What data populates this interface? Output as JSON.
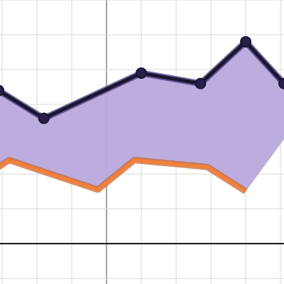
{
  "chart_data": {
    "type": "line",
    "xlim": [
      -3.06,
      5.1
    ],
    "ylim": [
      -1.16,
      7.0
    ],
    "xticks": [
      -3,
      -2,
      -1,
      0,
      1,
      2,
      3,
      4,
      5
    ],
    "yticks": [
      -1,
      0,
      1,
      2,
      3,
      4,
      5,
      6,
      7
    ],
    "grid": true,
    "fill": {
      "color": "#b8a9dc",
      "x": [
        -3.1,
        -1.8,
        1,
        2.7,
        4,
        5.1,
        5.1,
        4,
        2.9,
        0.8,
        -0.25,
        -2.8,
        -3.1
      ],
      "y": [
        4.4,
        3.6,
        4.9,
        4.6,
        5.8,
        4.6,
        3.0,
        1.5,
        2.2,
        2.4,
        1.55,
        2.4,
        2.2
      ]
    },
    "series": [
      {
        "color": "#1a1530",
        "markers": true,
        "x": [
          -3.1,
          -1.8,
          1,
          2.7,
          4,
          5.1
        ],
        "values": [
          4.4,
          3.6,
          4.9,
          4.6,
          5.8,
          4.6
        ]
      },
      {
        "color": "#f0803a",
        "markers": false,
        "x": [
          -3.1,
          -2.8,
          -0.25,
          0.8,
          2.9,
          4
        ],
        "values": [
          2.2,
          2.4,
          1.55,
          2.4,
          2.2,
          1.5
        ]
      }
    ]
  }
}
